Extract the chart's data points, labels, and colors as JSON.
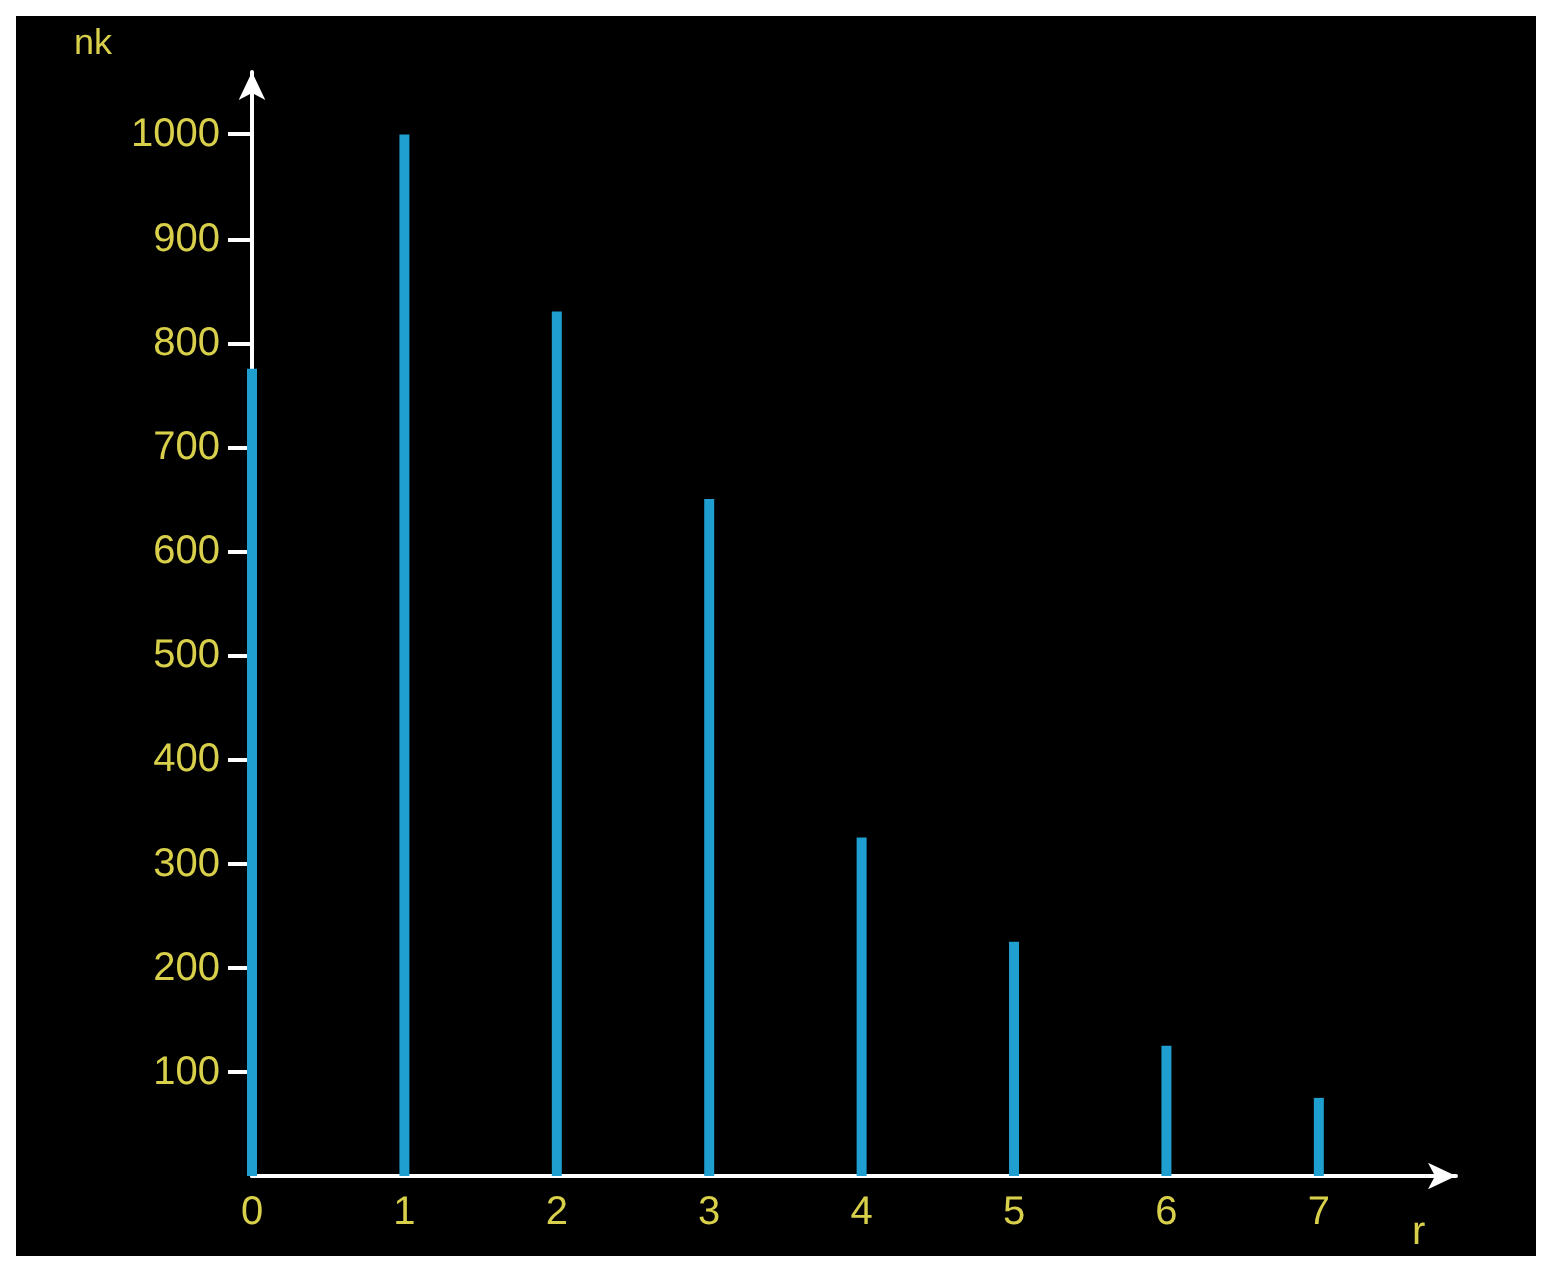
{
  "chart_data": {
    "type": "bar",
    "xlabel": "r",
    "ylabel": "nk",
    "x": [
      0,
      1,
      2,
      3,
      4,
      5,
      6,
      7
    ],
    "values": [
      775,
      1000,
      830,
      650,
      325,
      225,
      125,
      75
    ],
    "color": "#1e9fd0",
    "xlim": [
      0,
      7.9
    ],
    "xticks": [
      0,
      1,
      2,
      3,
      4,
      5,
      6,
      7
    ],
    "ylim": [
      0,
      1060
    ],
    "yticks": [
      100,
      200,
      300,
      400,
      500,
      600,
      700,
      800,
      900,
      1000
    ],
    "grid": false
  }
}
